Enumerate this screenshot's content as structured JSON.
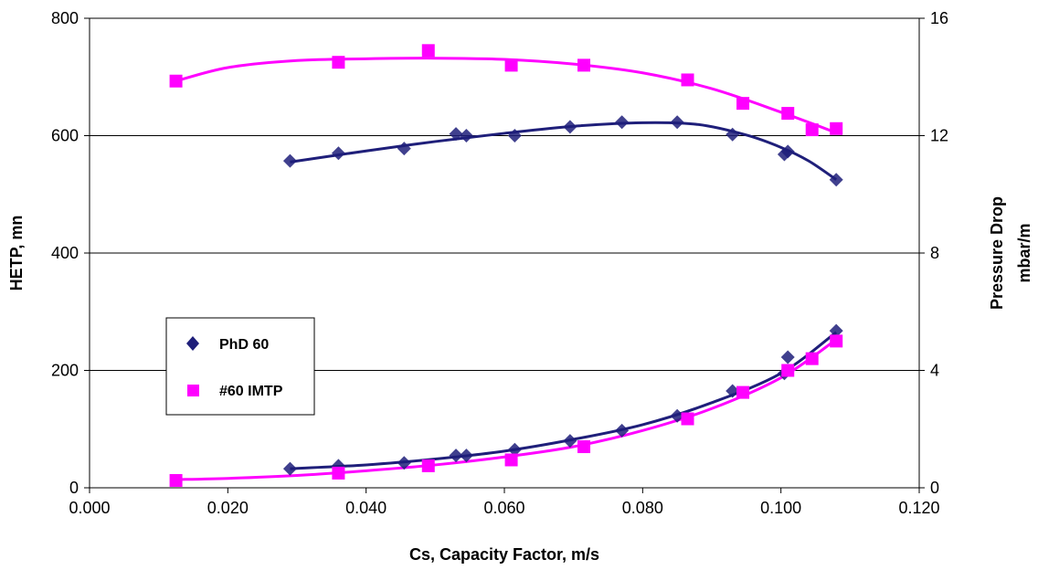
{
  "chart_data": {
    "type": "scatter",
    "xlabel": "Cs, Capacity Factor, m/s",
    "ylabel": "HETP, mn",
    "y2label_line1": "Pressure Drop",
    "y2label_line2": "mbar/m",
    "xlim": [
      0.0,
      0.12
    ],
    "ylim": [
      0,
      800
    ],
    "y2lim": [
      0,
      16
    ],
    "x_ticks": [
      "0.000",
      "0.020",
      "0.040",
      "0.060",
      "0.080",
      "0.100",
      "0.120"
    ],
    "y_ticks": [
      "0",
      "200",
      "400",
      "600",
      "800"
    ],
    "y2_ticks": [
      "0",
      "4",
      "8",
      "12",
      "16"
    ],
    "grid": "horizontal",
    "legend_position": "left",
    "series": [
      {
        "name": "PhD 60",
        "marker": "diamond",
        "color": "#1F1F7A",
        "hetp": {
          "x": [
            0.029,
            0.036,
            0.0455,
            0.053,
            0.0545,
            0.0615,
            0.0695,
            0.077,
            0.085,
            0.093,
            0.1005,
            0.101,
            0.108
          ],
          "y": [
            557,
            570,
            578,
            603,
            600,
            600,
            615,
            623,
            623,
            602,
            568,
            573,
            525
          ],
          "curve": [
            [
              0.029,
              555
            ],
            [
              0.04,
              574
            ],
            [
              0.05,
              590
            ],
            [
              0.06,
              604
            ],
            [
              0.07,
              616
            ],
            [
              0.08,
              622
            ],
            [
              0.088,
              619
            ],
            [
              0.095,
              601
            ],
            [
              0.1,
              580
            ],
            [
              0.104,
              557
            ],
            [
              0.108,
              525
            ]
          ]
        },
        "pressure_drop": {
          "x": [
            0.029,
            0.036,
            0.0455,
            0.053,
            0.0545,
            0.0615,
            0.0695,
            0.077,
            0.085,
            0.093,
            0.1005,
            0.101,
            0.108
          ],
          "y": [
            0.65,
            0.75,
            0.85,
            1.1,
            1.1,
            1.3,
            1.6,
            1.95,
            2.45,
            3.3,
            3.9,
            4.45,
            5.35
          ],
          "curve": [
            [
              0.029,
              0.65
            ],
            [
              0.04,
              0.78
            ],
            [
              0.05,
              0.98
            ],
            [
              0.06,
              1.25
            ],
            [
              0.07,
              1.65
            ],
            [
              0.08,
              2.15
            ],
            [
              0.09,
              2.9
            ],
            [
              0.1,
              3.9
            ],
            [
              0.108,
              5.3
            ]
          ]
        }
      },
      {
        "name": "#60 IMTP",
        "marker": "square",
        "color": "#FF00FF",
        "hetp": {
          "x": [
            0.0125,
            0.036,
            0.049,
            0.061,
            0.0715,
            0.0865,
            0.0945,
            0.101,
            0.1045,
            0.108
          ],
          "y": [
            693,
            725,
            745,
            720,
            720,
            695,
            655,
            638,
            610,
            612
          ],
          "curve": [
            [
              0.0125,
              693
            ],
            [
              0.02,
              716
            ],
            [
              0.03,
              728
            ],
            [
              0.04,
              731
            ],
            [
              0.05,
              732
            ],
            [
              0.06,
              730
            ],
            [
              0.07,
              722
            ],
            [
              0.08,
              707
            ],
            [
              0.09,
              680
            ],
            [
              0.1,
              640
            ],
            [
              0.108,
              605
            ]
          ]
        },
        "pressure_drop": {
          "x": [
            0.0125,
            0.036,
            0.049,
            0.061,
            0.0715,
            0.0865,
            0.0945,
            0.101,
            0.1045,
            0.108
          ],
          "y": [
            0.25,
            0.5,
            0.75,
            0.95,
            1.4,
            2.35,
            3.25,
            4.0,
            4.4,
            5.0
          ],
          "curve": [
            [
              0.0125,
              0.28
            ],
            [
              0.02,
              0.32
            ],
            [
              0.03,
              0.42
            ],
            [
              0.04,
              0.58
            ],
            [
              0.05,
              0.78
            ],
            [
              0.06,
              1.05
            ],
            [
              0.07,
              1.4
            ],
            [
              0.08,
              1.95
            ],
            [
              0.09,
              2.7
            ],
            [
              0.1,
              3.75
            ],
            [
              0.108,
              5.05
            ]
          ]
        }
      }
    ]
  },
  "legend": {
    "items": [
      {
        "label": "PhD 60",
        "color": "#1F1F7A",
        "marker": "diamond"
      },
      {
        "label": "#60 IMTP",
        "color": "#FF00FF",
        "marker": "square"
      }
    ]
  }
}
